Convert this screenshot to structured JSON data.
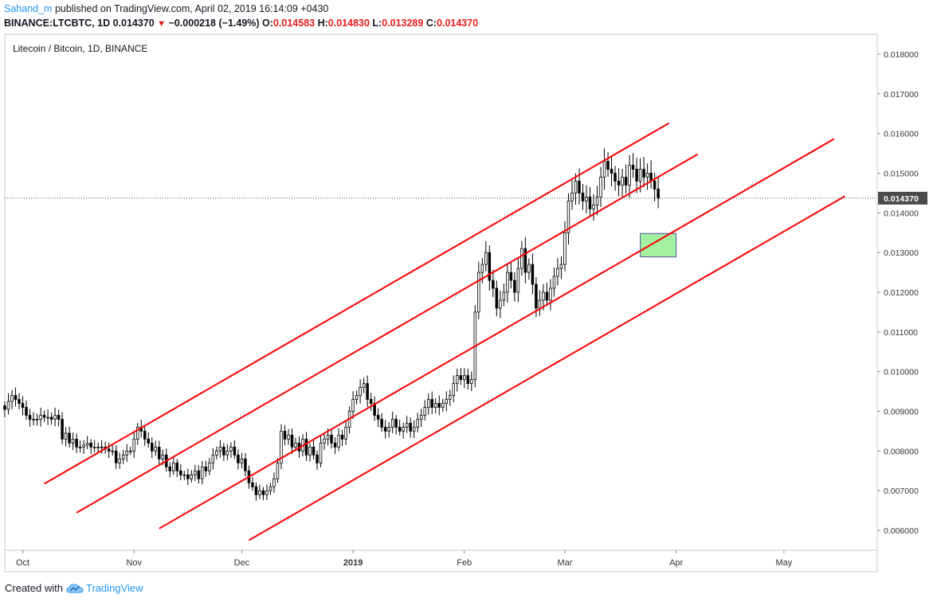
{
  "header": {
    "author": "Sahand_m",
    "published": " published on TradingView.com, April 02, 2019 16:14:09 +0430",
    "symbol": "BINANCE:LTCBTC, 1D",
    "last": "0.014370",
    "change": "−0.000218 (−1.49%)",
    "o_label": "O:",
    "o_value": "0.014583",
    "h_label": "H:",
    "h_value": "0.014830",
    "l_label": "L:",
    "l_value": "0.013289",
    "c_label": "C:",
    "c_value": "0.014370"
  },
  "footer": {
    "created_with": "Created with",
    "brand": "TradingView"
  },
  "chart_data": {
    "type": "candlestick",
    "title": "Litecoin / Bitcoin, 1D, BINANCE",
    "ylim": [
      0.0055,
      0.0185
    ],
    "y_ticks": [
      "0.018000",
      "0.017000",
      "0.016000",
      "0.015000",
      "0.014000",
      "0.013000",
      "0.012000",
      "0.011000",
      "0.010000",
      "0.009000",
      "0.008000",
      "0.007000",
      "0.006000"
    ],
    "x_ticks": [
      {
        "label": "Oct",
        "day": 0,
        "bold": false
      },
      {
        "label": "Nov",
        "day": 31,
        "bold": false
      },
      {
        "label": "Dec",
        "day": 61,
        "bold": false
      },
      {
        "label": "2019",
        "day": 92,
        "bold": true
      },
      {
        "label": "Feb",
        "day": 123,
        "bold": false
      },
      {
        "label": "Mar",
        "day": 151,
        "bold": false
      },
      {
        "label": "Apr",
        "day": 182,
        "bold": false
      },
      {
        "label": "May",
        "day": 212,
        "bold": false
      }
    ],
    "x_range_days": [
      -5,
      238
    ],
    "last_price": 0.01437,
    "last_price_label": "0.014370",
    "first_day": -5,
    "closes": [
      0.00905,
      0.00925,
      0.0094,
      0.0093,
      0.0092,
      0.0091,
      0.0089,
      0.0088,
      0.0088,
      0.0088,
      0.0089,
      0.00885,
      0.00885,
      0.0088,
      0.0089,
      0.0088,
      0.0083,
      0.00845,
      0.0082,
      0.0083,
      0.0081,
      0.0081,
      0.00815,
      0.0082,
      0.0081,
      0.0081,
      0.0081,
      0.0081,
      0.00805,
      0.008,
      0.008,
      0.0077,
      0.0078,
      0.0079,
      0.008,
      0.008,
      0.0083,
      0.0086,
      0.0085,
      0.0083,
      0.0082,
      0.008,
      0.0081,
      0.0078,
      0.0079,
      0.0076,
      0.0075,
      0.0077,
      0.0075,
      0.0074,
      0.0074,
      0.0073,
      0.0074,
      0.0075,
      0.0073,
      0.0076,
      0.0075,
      0.0077,
      0.0079,
      0.008,
      0.0081,
      0.0079,
      0.008,
      0.0081,
      0.0079,
      0.0077,
      0.0078,
      0.0075,
      0.0072,
      0.0071,
      0.0069,
      0.007,
      0.0069,
      0.007,
      0.0071,
      0.0073,
      0.0077,
      0.0085,
      0.0083,
      0.0084,
      0.0081,
      0.0082,
      0.008,
      0.0083,
      0.0079,
      0.0081,
      0.0079,
      0.0077,
      0.0082,
      0.0083,
      0.0084,
      0.0082,
      0.0081,
      0.0084,
      0.0083,
      0.0086,
      0.009,
      0.0093,
      0.0094,
      0.0096,
      0.0097,
      0.0093,
      0.0092,
      0.0089,
      0.0088,
      0.0086,
      0.0085,
      0.0086,
      0.0088,
      0.0086,
      0.0085,
      0.0086,
      0.0087,
      0.0085,
      0.0086,
      0.0088,
      0.0089,
      0.0091,
      0.0093,
      0.0091,
      0.0092,
      0.0091,
      0.0092,
      0.0093,
      0.0094,
      0.0097,
      0.0099,
      0.0098,
      0.0099,
      0.0097,
      0.0098,
      0.0115,
      0.0125,
      0.0127,
      0.013,
      0.0123,
      0.0121,
      0.0116,
      0.0118,
      0.012,
      0.0125,
      0.0123,
      0.012,
      0.0126,
      0.0131,
      0.0125,
      0.0127,
      0.0122,
      0.0116,
      0.0118,
      0.012,
      0.0118,
      0.0121,
      0.0124,
      0.0126,
      0.0127,
      0.0135,
      0.0143,
      0.0145,
      0.0148,
      0.0145,
      0.0143,
      0.0144,
      0.0141,
      0.0142,
      0.0144,
      0.0149,
      0.0153,
      0.0151,
      0.015,
      0.0148,
      0.0147,
      0.0149,
      0.0147,
      0.0152,
      0.0151,
      0.0148,
      0.0151,
      0.0149,
      0.015,
      0.0148,
      0.0146,
      0.01437
    ],
    "lines": [
      {
        "name": "channel-top",
        "p1": [
          -5,
          0.0066
        ],
        "p2": [
          175,
          0.016
        ]
      },
      {
        "name": "channel-upper-mid",
        "p1": [
          -5,
          0.0054
        ],
        "p2": [
          175,
          0.0148
        ]
      },
      {
        "name": "channel-lower-mid",
        "p1": [
          -5,
          0.0038
        ],
        "p2": [
          175,
          0.0132
        ]
      },
      {
        "name": "channel-bottom",
        "p1": [
          -5,
          0.0022
        ],
        "p2": [
          175,
          0.0116
        ]
      }
    ],
    "segments": [
      {
        "name": "channel-top",
        "from": 6,
        "to": 180
      },
      {
        "name": "channel-upper-mid",
        "from": 15,
        "to": 188
      },
      {
        "name": "channel-lower-mid",
        "from": 38,
        "to": 226
      },
      {
        "name": "channel-bottom",
        "from": 63,
        "to": 229
      }
    ],
    "zone": {
      "day_from": 172,
      "day_to": 182,
      "price_from": 0.01289,
      "price_to": 0.01348,
      "color": "#90ee90"
    },
    "colors": {
      "channel": "#ff0000",
      "candle": "#000000",
      "zone_border": "#5050a0"
    }
  }
}
